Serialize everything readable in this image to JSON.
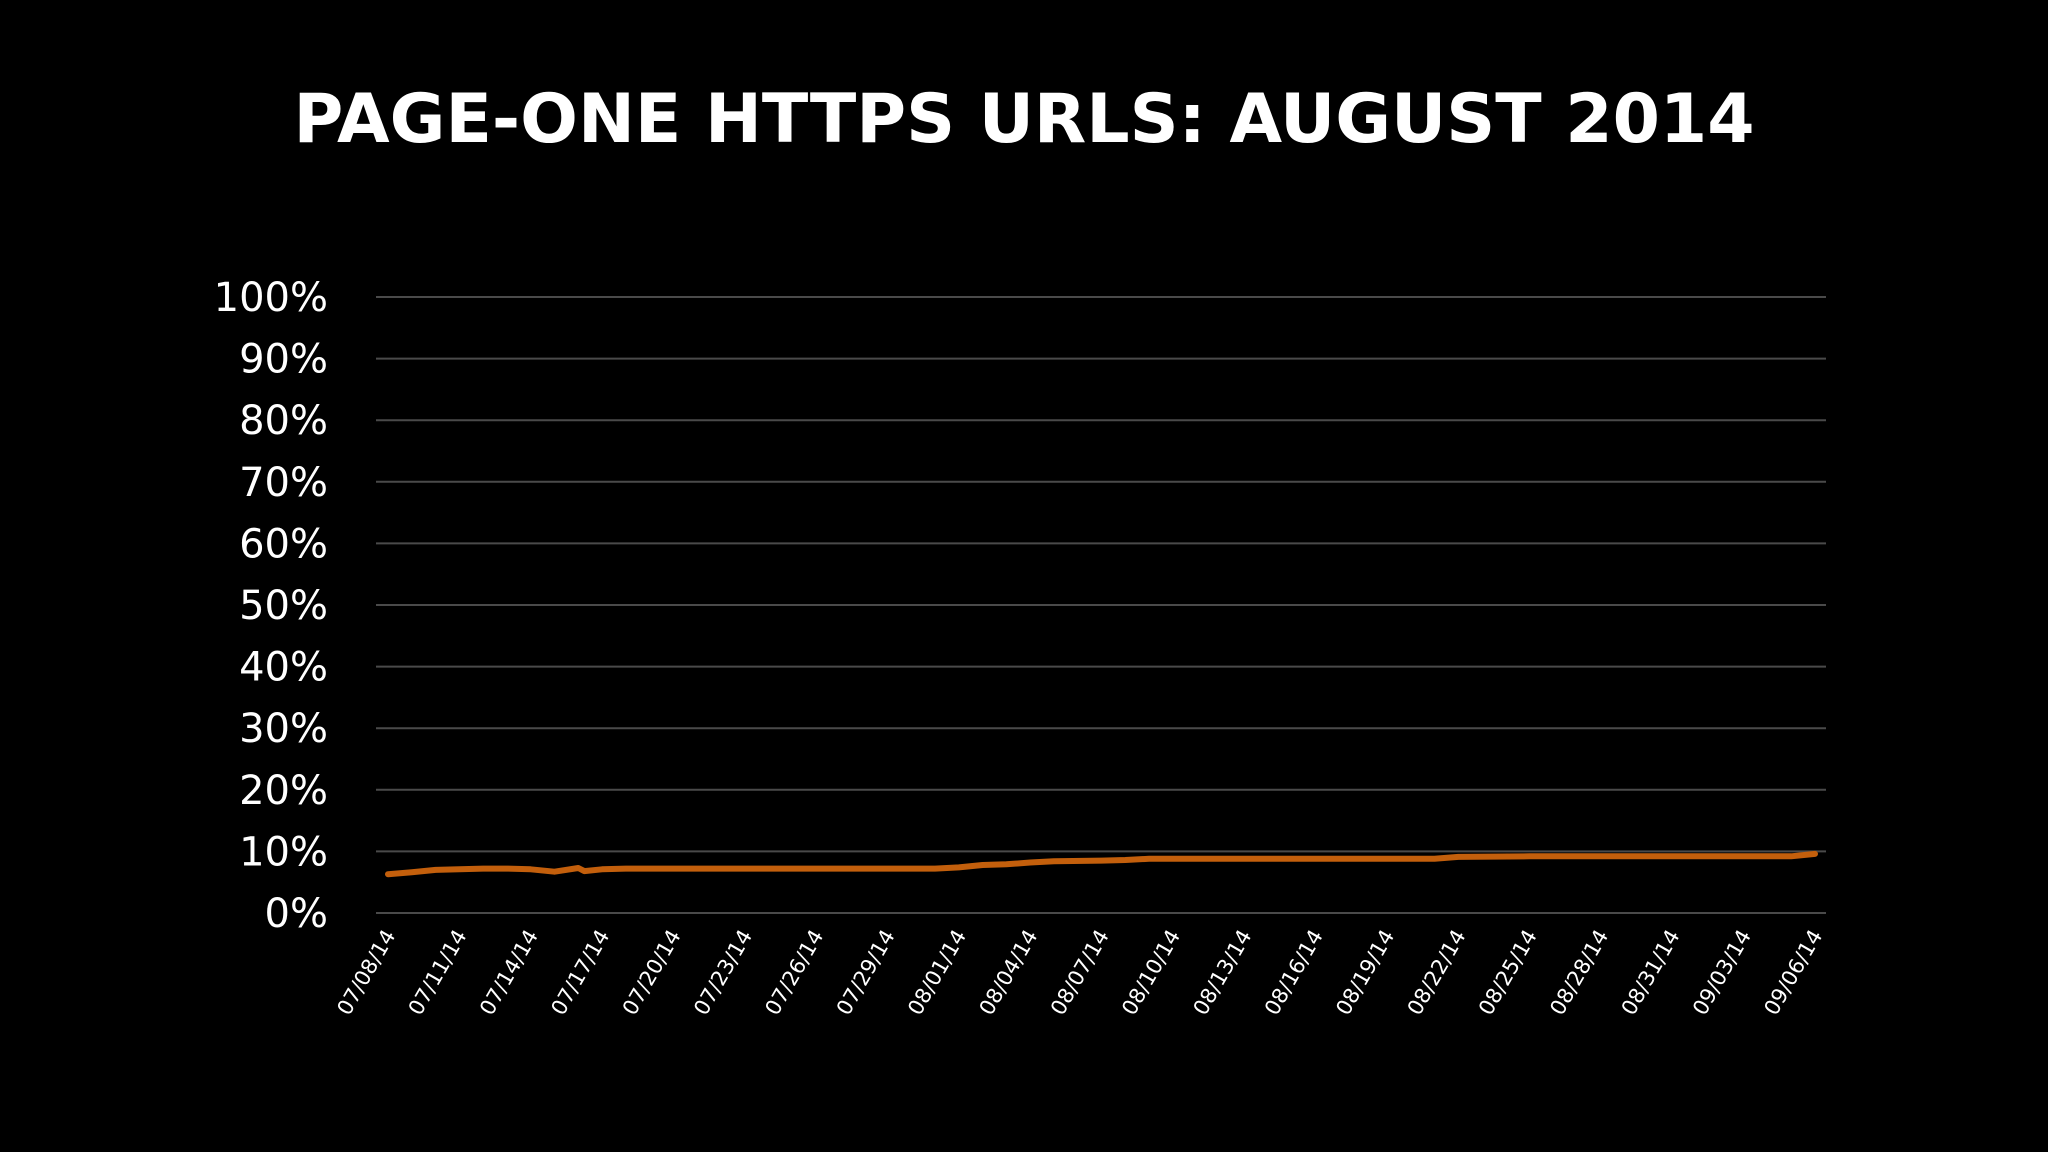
{
  "colors": {
    "background": "#000000",
    "text": "#ffffff",
    "grid": "#4a4a4a",
    "series": "#c35f0c"
  },
  "chart_data": {
    "type": "line",
    "title": "PAGE-ONE HTTPS URLS: AUGUST 2014",
    "xlabel": "",
    "ylabel": "",
    "ylim": [
      0,
      100
    ],
    "y_ticks": [
      "0%",
      "10%",
      "20%",
      "30%",
      "40%",
      "50%",
      "60%",
      "70%",
      "80%",
      "90%",
      "100%"
    ],
    "x_ticks": [
      "07/08/14",
      "07/11/14",
      "07/14/14",
      "07/17/14",
      "07/20/14",
      "07/23/14",
      "07/26/14",
      "07/29/14",
      "08/01/14",
      "08/04/14",
      "08/07/14",
      "08/10/14",
      "08/13/14",
      "08/16/14",
      "08/19/14",
      "08/22/14",
      "08/25/14",
      "08/28/14",
      "08/31/14",
      "09/03/14",
      "09/06/14"
    ],
    "grid": true,
    "legend": "none",
    "series": [
      {
        "points": [
          [
            "07/08/14",
            6.3
          ],
          [
            "07/09/14",
            6.6
          ],
          [
            "07/10/14",
            7.0
          ],
          [
            "07/11/14",
            7.1
          ],
          [
            "07/12/14",
            7.2
          ],
          [
            "07/13/14",
            7.2
          ],
          [
            "07/14/14",
            7.1
          ],
          [
            "07/15/14",
            6.7
          ],
          [
            "07/16/14",
            7.3
          ],
          [
            "07/16/14",
            6.8
          ],
          [
            "07/17/14",
            7.1
          ],
          [
            "07/18/14",
            7.2
          ],
          [
            "07/20/14",
            7.2
          ],
          [
            "07/23/14",
            7.2
          ],
          [
            "07/26/14",
            7.2
          ],
          [
            "07/29/14",
            7.2
          ],
          [
            "07/31/14",
            7.2
          ],
          [
            "08/01/14",
            7.4
          ],
          [
            "08/02/14",
            7.8
          ],
          [
            "08/03/14",
            7.9
          ],
          [
            "08/04/14",
            8.2
          ],
          [
            "08/05/14",
            8.4
          ],
          [
            "08/07/14",
            8.5
          ],
          [
            "08/08/14",
            8.6
          ],
          [
            "08/09/14",
            8.8
          ],
          [
            "08/10/14",
            8.8
          ],
          [
            "08/13/14",
            8.8
          ],
          [
            "08/16/14",
            8.8
          ],
          [
            "08/19/14",
            8.8
          ],
          [
            "08/21/14",
            8.8
          ],
          [
            "08/22/14",
            9.1
          ],
          [
            "08/25/14",
            9.2
          ],
          [
            "08/28/14",
            9.2
          ],
          [
            "08/31/14",
            9.2
          ],
          [
            "09/03/14",
            9.2
          ],
          [
            "09/05/14",
            9.2
          ],
          [
            "09/06/14",
            9.6
          ]
        ]
      }
    ]
  }
}
